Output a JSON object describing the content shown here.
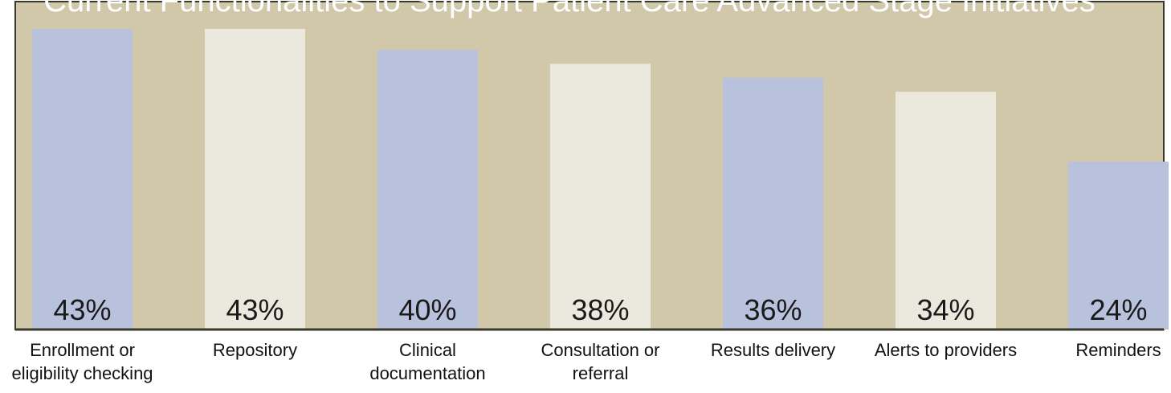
{
  "chart_data": {
    "type": "bar",
    "title": "Current Functionalities to Support Patient Care Advanced Stage Initiatives",
    "categories": [
      [
        "Enrollment or",
        "eligibility checking"
      ],
      [
        "Repository"
      ],
      [
        "Clinical",
        "documentation"
      ],
      [
        "Consultation or",
        "referral"
      ],
      [
        "Results delivery"
      ],
      [
        "Alerts to providers"
      ],
      [
        "Reminders"
      ]
    ],
    "values": [
      43,
      43,
      40,
      38,
      36,
      34,
      24
    ],
    "value_labels": [
      "43%",
      "43%",
      "40%",
      "38%",
      "36%",
      "34%",
      "24%"
    ],
    "unit": "%",
    "xlabel": "",
    "ylabel": "",
    "grid": false,
    "legend": "none"
  },
  "colors": {
    "plot_background": "#d1c8aa",
    "plot_border": "#3a3a2c",
    "bar_blue": "#b8c2dc",
    "bar_cream": "#ebe9dd",
    "title_text": "#ffffff",
    "label_text": "#1a1a1a"
  }
}
